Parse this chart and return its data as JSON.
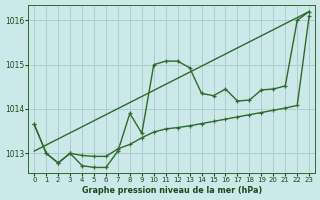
{
  "bg_color": "#cce8e8",
  "grid_color": "#aacfcf",
  "line_color": "#2d6b2d",
  "text_color": "#1a4a1a",
  "xlabel": "Graphe pression niveau de la mer (hPa)",
  "xlim": [
    -0.5,
    23.5
  ],
  "ylim": [
    1012.55,
    1016.35
  ],
  "yticks": [
    1013,
    1014,
    1015,
    1016
  ],
  "xticks": [
    0,
    1,
    2,
    3,
    4,
    5,
    6,
    7,
    8,
    9,
    10,
    11,
    12,
    13,
    14,
    15,
    16,
    17,
    18,
    19,
    20,
    21,
    22,
    23
  ],
  "trend_x": [
    0,
    23
  ],
  "trend_y": [
    1013.05,
    1016.2
  ],
  "zigzag_x": [
    0,
    1,
    2,
    3,
    4,
    5,
    6,
    7,
    8,
    9,
    10,
    11,
    12,
    13,
    14,
    15,
    16,
    17,
    18,
    19,
    20,
    21,
    22,
    23
  ],
  "zigzag_y": [
    1013.65,
    1013.0,
    1012.78,
    1013.0,
    1012.72,
    1012.68,
    1012.68,
    1013.05,
    1013.9,
    1013.45,
    1015.0,
    1015.08,
    1015.08,
    1014.93,
    1014.35,
    1014.3,
    1014.45,
    1014.18,
    1014.2,
    1014.43,
    1014.45,
    1014.52,
    1016.0,
    1016.2
  ],
  "smooth_x": [
    0,
    1,
    2,
    3,
    4,
    5,
    6,
    7,
    8,
    9,
    10,
    11,
    12,
    13,
    14,
    15,
    16,
    17,
    18,
    19,
    20,
    21,
    22,
    23
  ],
  "smooth_y": [
    1013.65,
    1013.0,
    1012.78,
    1013.0,
    1012.95,
    1012.93,
    1012.93,
    1013.1,
    1013.2,
    1013.35,
    1013.48,
    1013.55,
    1013.58,
    1013.62,
    1013.67,
    1013.72,
    1013.77,
    1013.82,
    1013.87,
    1013.92,
    1013.97,
    1014.02,
    1014.08,
    1016.1
  ]
}
